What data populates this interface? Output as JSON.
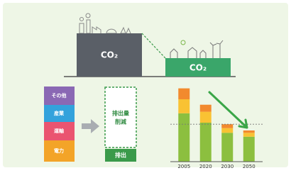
{
  "scene": {
    "before_label": "CO₂",
    "after_label": "CO₂"
  },
  "breakdown": {
    "items": [
      "その他",
      "産業",
      "運輸",
      "電力"
    ],
    "reduction_label": [
      "排出量",
      "削減"
    ],
    "remaining_label": "排出"
  },
  "chart_data": {
    "type": "bar",
    "stacked": true,
    "categories": [
      "2005",
      "2020",
      "2030",
      "2050"
    ],
    "series": [
      {
        "color": "#8cbf3f",
        "values": [
          62,
          50,
          37,
          32
        ]
      },
      {
        "color": "#f9c233",
        "values": [
          18,
          14,
          6,
          5
        ]
      },
      {
        "color": "#f28a2e",
        "values": [
          14,
          9,
          5,
          3
        ]
      }
    ],
    "ylim": [
      0,
      100
    ],
    "reference_line": 48
  }
}
